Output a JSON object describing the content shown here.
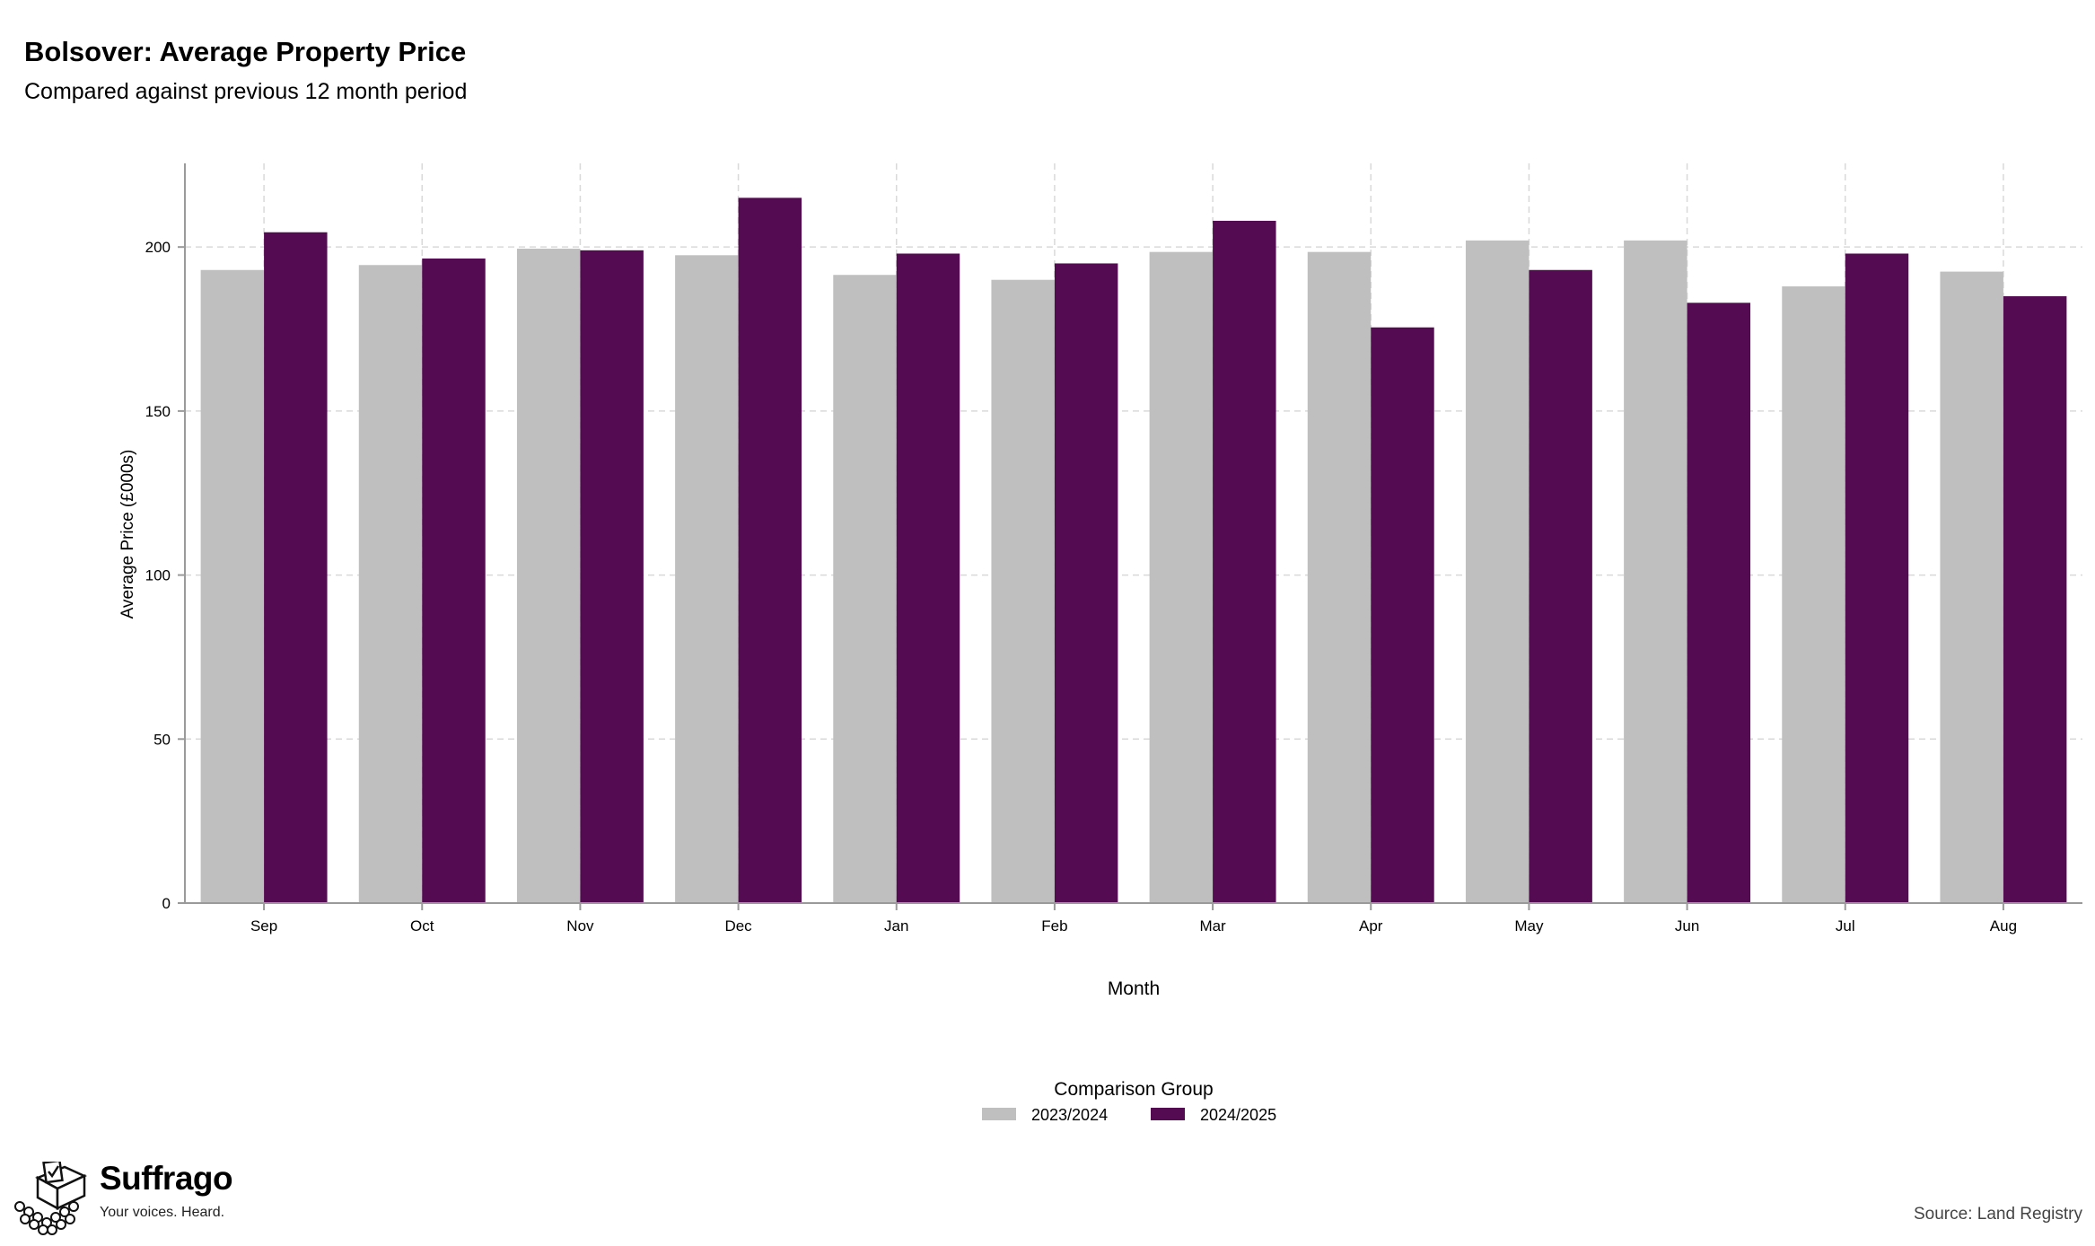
{
  "header": {
    "title": "Bolsover: Average Property Price",
    "subtitle": "Compared against previous 12 month period"
  },
  "chart_data": {
    "type": "bar",
    "categories": [
      "Sep",
      "Oct",
      "Nov",
      "Dec",
      "Jan",
      "Feb",
      "Mar",
      "Apr",
      "May",
      "Jun",
      "Jul",
      "Aug"
    ],
    "series": [
      {
        "name": "2023/2024",
        "color": "#bfbfbf",
        "values": [
          193,
          194.5,
          199.5,
          197.5,
          191.5,
          190,
          198.5,
          198.5,
          202,
          202,
          188,
          192.5
        ]
      },
      {
        "name": "2024/2025",
        "color": "#550b52",
        "values": [
          204.5,
          196.5,
          199,
          215,
          198,
          195,
          208,
          175.5,
          193,
          183,
          198,
          185
        ]
      }
    ],
    "xlabel": "Month",
    "ylabel": "Average Price (£000s)",
    "ylim": [
      0,
      225.5
    ],
    "yticks": [
      0,
      50,
      100,
      150,
      200
    ],
    "grid": true,
    "legend": {
      "title": "Comparison Group",
      "position": "bottom"
    }
  },
  "branding": {
    "name": "Suffrago",
    "tagline": "Your voices. Heard.",
    "logo_icon": "ballot-box-icon"
  },
  "footer": {
    "source": "Source: Land Registry"
  }
}
